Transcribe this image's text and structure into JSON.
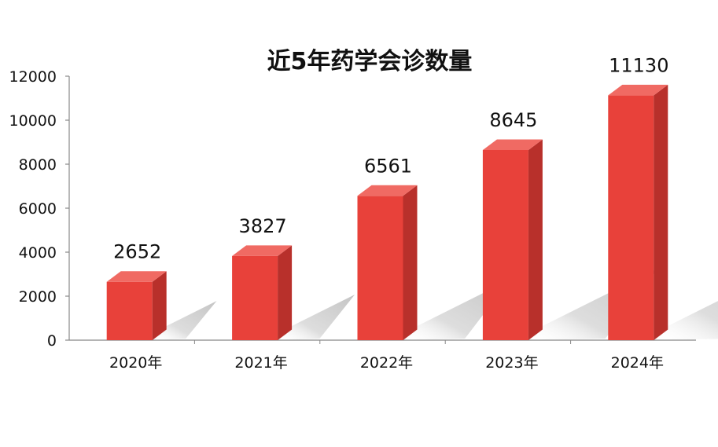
{
  "chart_data": {
    "type": "bar",
    "title": "近5年药学会诊数量",
    "xlabel": "",
    "ylabel": "",
    "categories": [
      "2020年",
      "2021年",
      "2022年",
      "2023年",
      "2024年"
    ],
    "values": [
      2652,
      3827,
      6561,
      8645,
      11130
    ],
    "data_labels": [
      "2652",
      "3827",
      "6561",
      "8645",
      "11130"
    ],
    "ylim": [
      0,
      12000
    ],
    "yticks": [
      "0",
      "2000",
      "4000",
      "6000",
      "8000",
      "10000",
      "12000"
    ],
    "grid": false,
    "legend": "none",
    "style": "3d-column",
    "colors": {
      "bar_front": "#E8413A",
      "bar_side": "#B8302B",
      "bar_top": "#F06A63",
      "shadow": "#d9d9d9",
      "axis": "#888888"
    }
  }
}
